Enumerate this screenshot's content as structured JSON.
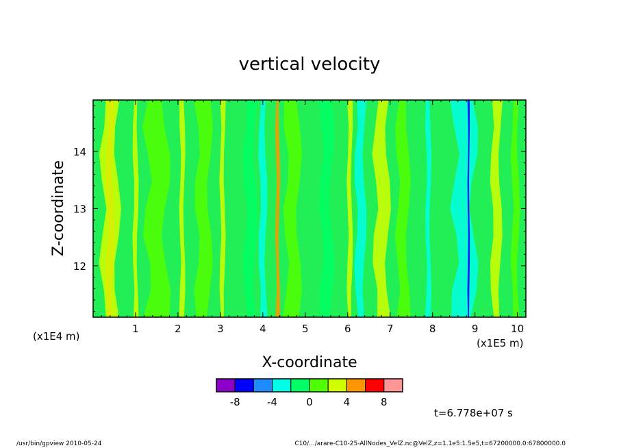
{
  "chart_data": {
    "type": "heatmap",
    "title": "vertical velocity",
    "xlabel": "X-coordinate",
    "ylabel": "Z-coordinate",
    "x_unit": "(x1E5 m)",
    "y_unit": "(x1E4 m)",
    "xlim": [
      0.0,
      10.2
    ],
    "ylim": [
      11.1,
      14.9
    ],
    "x_ticks": [
      "1",
      "2",
      "3",
      "4",
      "5",
      "6",
      "7",
      "8",
      "9",
      "10"
    ],
    "y_ticks": [
      "12",
      "13",
      "14"
    ],
    "colorbar": {
      "colors": [
        "#8c00c8",
        "#0000ff",
        "#1e8cff",
        "#00ffe6",
        "#00ff64",
        "#50ff00",
        "#d2ff00",
        "#ff9600",
        "#ff0000",
        "#ff9696"
      ],
      "labels": [
        "-8",
        "-4",
        "0",
        "4",
        "8"
      ]
    },
    "dominant_color": "#22ee55",
    "bands": [
      {
        "x_center": 0.4,
        "width": 0.15,
        "color": "#ff9600"
      },
      {
        "x_center": 0.4,
        "width": 0.35,
        "color": "#d2ff00"
      },
      {
        "x_center": 1.0,
        "width": 0.1,
        "color": "#d2ff00"
      },
      {
        "x_center": 1.5,
        "width": 0.45,
        "color": "#50ff00"
      },
      {
        "x_center": 2.1,
        "width": 0.1,
        "color": "#d2ff00"
      },
      {
        "x_center": 2.6,
        "width": 0.3,
        "color": "#50ff00"
      },
      {
        "x_center": 3.05,
        "width": 0.1,
        "color": "#d2ff00"
      },
      {
        "x_center": 3.7,
        "width": 0.25,
        "color": "#00ff64"
      },
      {
        "x_center": 4.0,
        "width": 0.15,
        "color": "#00ffe6"
      },
      {
        "x_center": 4.35,
        "width": 0.08,
        "color": "#ff9600"
      },
      {
        "x_center": 4.7,
        "width": 0.3,
        "color": "#50ff00"
      },
      {
        "x_center": 5.5,
        "width": 0.25,
        "color": "#00ff64"
      },
      {
        "x_center": 6.05,
        "width": 0.1,
        "color": "#d2ff00"
      },
      {
        "x_center": 6.3,
        "width": 0.2,
        "color": "#00ffe6"
      },
      {
        "x_center": 6.8,
        "width": 0.3,
        "color": "#d2ff00"
      },
      {
        "x_center": 7.3,
        "width": 0.25,
        "color": "#50ff00"
      },
      {
        "x_center": 7.9,
        "width": 0.1,
        "color": "#00ffe6"
      },
      {
        "x_center": 8.75,
        "width": 0.45,
        "color": "#00ffe6"
      },
      {
        "x_center": 8.85,
        "width": 0.04,
        "color": "#0000ff"
      },
      {
        "x_center": 9.5,
        "width": 0.2,
        "color": "#d2ff00"
      },
      {
        "x_center": 9.95,
        "width": 0.15,
        "color": "#50ff00"
      }
    ]
  },
  "time_label": "t=6.778e+07 s",
  "footer_left": "/usr/bin/gpview  2010-05-24",
  "footer_right": "C10/.../arare-C10-25-AllNodes_VelZ.nc@VelZ,z=1.1e5:1.5e5,t=67200000.0:67800000.0"
}
